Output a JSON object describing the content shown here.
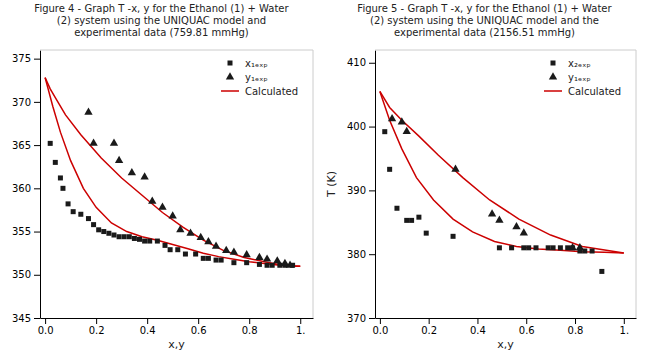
{
  "chart_data": [
    {
      "type": "scatter",
      "title": "Figure 4 - Graph T -x, y for the Ethanol (1) + Water\n(2) system using the UNIQUAC model and\nexperimental data (759.81 mmHg)",
      "xlabel": "x,y",
      "xlim": [
        -0.02,
        1.05
      ],
      "xticks": [
        {
          "value": 0.0,
          "label": "0.0"
        },
        0.2,
        0.4,
        0.6,
        0.8,
        {
          "value": 1.0,
          "label": "1."
        }
      ],
      "ylim": [
        345,
        376
      ],
      "yticks": [
        345,
        350,
        355,
        360,
        365,
        370,
        375
      ],
      "legend": "upper right",
      "series": [
        {
          "name": "x₁ₑₓₚ",
          "type": "scatter",
          "marker": "square",
          "color": "#1a1a1a",
          "x": [
            0.02,
            0.04,
            0.06,
            0.07,
            0.09,
            0.11,
            0.14,
            0.17,
            0.19,
            0.21,
            0.23,
            0.25,
            0.27,
            0.29,
            0.31,
            0.33,
            0.35,
            0.37,
            0.39,
            0.41,
            0.44,
            0.47,
            0.49,
            0.52,
            0.55,
            0.59,
            0.62,
            0.64,
            0.67,
            0.69,
            0.74,
            0.79,
            0.84,
            0.87,
            0.89,
            0.92,
            0.94,
            0.97
          ],
          "values": [
            365.2,
            363.0,
            361.2,
            360.0,
            358.2,
            357.3,
            357.0,
            356.5,
            355.8,
            355.2,
            355.0,
            354.8,
            354.6,
            354.4,
            354.4,
            354.4,
            354.2,
            354.1,
            353.9,
            353.9,
            353.9,
            353.4,
            352.9,
            352.9,
            352.4,
            352.4,
            351.9,
            351.9,
            351.7,
            351.7,
            351.4,
            351.4,
            351.2,
            351.1,
            351.1,
            351.1,
            351.1,
            351.1
          ]
        },
        {
          "name": "y₁ₑₓₚ",
          "type": "scatter",
          "marker": "triangle",
          "color": "#1a1a1a",
          "x": [
            0.17,
            0.19,
            0.27,
            0.29,
            0.34,
            0.39,
            0.42,
            0.46,
            0.5,
            0.53,
            0.57,
            0.61,
            0.64,
            0.67,
            0.71,
            0.74,
            0.79,
            0.84,
            0.87,
            0.91,
            0.94,
            0.96
          ],
          "values": [
            368.8,
            365.2,
            365.2,
            363.2,
            361.8,
            361.3,
            358.5,
            357.8,
            356.8,
            355.2,
            354.8,
            354.3,
            353.8,
            353.3,
            352.8,
            352.6,
            352.3,
            352.0,
            351.8,
            351.6,
            351.3,
            351.1
          ]
        },
        {
          "name": "Calculated",
          "type": "line",
          "line_style": "solid",
          "color": "#cc0000",
          "x": [
            0.0,
            0.03,
            0.06,
            0.1,
            0.15,
            0.2,
            0.26,
            0.32,
            0.38,
            0.44,
            0.5,
            0.56,
            0.62,
            0.68,
            0.74,
            0.8,
            0.86,
            0.92,
            0.97,
            1.0
          ],
          "values": [
            372.8,
            369.5,
            366.5,
            363.2,
            360.0,
            357.8,
            356.0,
            355.0,
            354.4,
            354.0,
            353.5,
            353.0,
            352.5,
            352.1,
            351.8,
            351.5,
            351.3,
            351.1,
            351.0,
            351.0
          ]
        },
        {
          "name": "Calculated",
          "type": "line",
          "line_style": "solid",
          "color": "#cc0000",
          "x": [
            0.0,
            0.02,
            0.04,
            0.08,
            0.14,
            0.22,
            0.3,
            0.38,
            0.46,
            0.54,
            0.62,
            0.7,
            0.78,
            0.86,
            0.93,
            1.0
          ],
          "values": [
            372.8,
            371.5,
            370.5,
            368.5,
            366.2,
            363.5,
            361.2,
            359.2,
            357.2,
            355.5,
            354.0,
            352.8,
            352.0,
            351.5,
            351.1,
            351.0
          ]
        }
      ]
    },
    {
      "type": "scatter",
      "title": "Figure 5 - Graph T -x, y for the Ethanol (1) + Water\n(2) system using the UNIQUAC model and the\nexperimental data (2156.51 mmHg)",
      "xlabel": "x,y",
      "ylabel": "T (K)",
      "xlim": [
        -0.02,
        1.05
      ],
      "xticks": [
        {
          "value": 0.0,
          "label": "0.0"
        },
        0.2,
        0.4,
        0.6,
        0.8,
        {
          "value": 1.0,
          "label": "1."
        }
      ],
      "ylim": [
        370,
        412
      ],
      "yticks": [
        370,
        380,
        390,
        400,
        410
      ],
      "legend": "upper right",
      "series": [
        {
          "name": "x₂ₑₓₚ",
          "type": "scatter",
          "marker": "square",
          "color": "#1a1a1a",
          "x": [
            0.02,
            0.04,
            0.07,
            0.11,
            0.13,
            0.16,
            0.19,
            0.3,
            0.49,
            0.54,
            0.59,
            0.61,
            0.64,
            0.69,
            0.71,
            0.74,
            0.77,
            0.79,
            0.82,
            0.84,
            0.87,
            0.91
          ],
          "values": [
            399.2,
            393.3,
            387.2,
            385.3,
            385.3,
            385.8,
            383.3,
            382.8,
            381.0,
            381.0,
            381.0,
            381.0,
            381.0,
            381.0,
            381.0,
            381.0,
            381.0,
            381.0,
            380.5,
            380.5,
            380.5,
            377.3
          ]
        },
        {
          "name": "y₁ₑₓₚ",
          "type": "scatter",
          "marker": "triangle",
          "color": "#1a1a1a",
          "x": [
            0.05,
            0.09,
            0.11,
            0.31,
            0.46,
            0.49,
            0.56,
            0.59,
            0.79,
            0.82
          ],
          "values": [
            401.2,
            400.7,
            399.2,
            393.3,
            386.3,
            385.3,
            384.3,
            383.3,
            381.0,
            381.0
          ]
        },
        {
          "name": "Calculated",
          "type": "line",
          "line_style": "solid",
          "color": "#cc0000",
          "x": [
            0.0,
            0.04,
            0.09,
            0.15,
            0.22,
            0.3,
            0.38,
            0.47,
            0.56,
            0.65,
            0.74,
            0.83,
            0.92,
            1.0
          ],
          "values": [
            405.5,
            401.0,
            396.5,
            392.0,
            388.5,
            385.5,
            383.5,
            382.0,
            381.2,
            380.8,
            380.6,
            380.4,
            380.3,
            380.2
          ]
        },
        {
          "name": "Calculated",
          "type": "line",
          "line_style": "solid",
          "color": "#cc0000",
          "x": [
            0.0,
            0.04,
            0.09,
            0.16,
            0.24,
            0.34,
            0.45,
            0.57,
            0.7,
            0.83,
            1.0
          ],
          "values": [
            405.5,
            403.0,
            401.0,
            398.5,
            395.5,
            392.0,
            388.5,
            385.5,
            383.0,
            381.2,
            380.2
          ]
        }
      ]
    }
  ]
}
